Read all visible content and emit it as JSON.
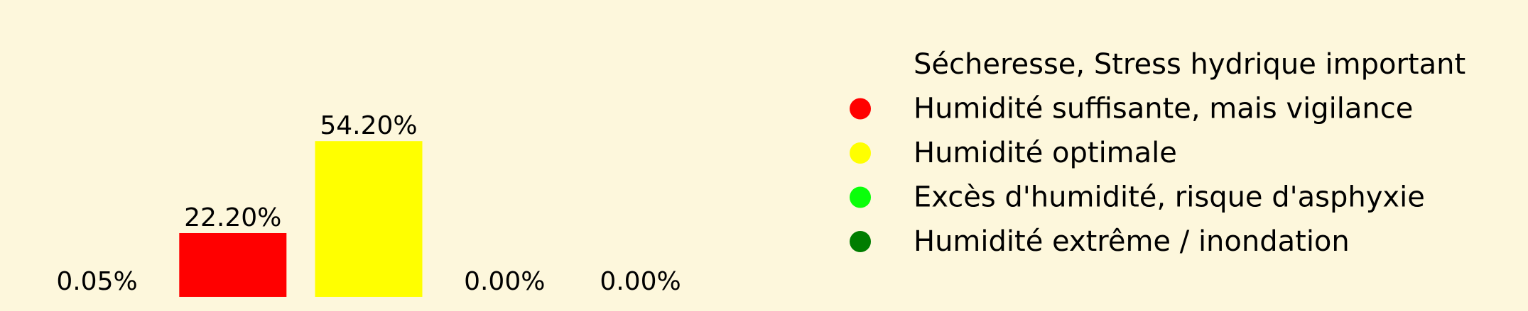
{
  "chart_data": {
    "type": "bar",
    "categories": [
      "Sécheresse, Stress hydrique important",
      "Humidité suffisante, mais vigilance",
      "Humidité optimale",
      "Excès d'humidité, risque d'asphyxie",
      "Humidité extrême / inondation"
    ],
    "values": [
      0.05,
      22.2,
      54.2,
      0.0,
      0.0
    ],
    "value_labels": [
      "0.05%",
      "22.20%",
      "54.20%",
      "0.00%",
      "0.00%"
    ],
    "colors": [
      "#fdf7dc",
      "#ff0000",
      "#ffff00",
      "#0aff0a",
      "#007d00"
    ],
    "ylim": [
      0,
      100
    ],
    "unit": "%",
    "grid": false,
    "legend": {
      "placement": "right",
      "entries": [
        {
          "label": "Sécheresse, Stress hydrique important",
          "color": "#fdf7dc"
        },
        {
          "label": "Humidité suffisante, mais vigilance",
          "color": "#ff0000"
        },
        {
          "label": "Humidité optimale",
          "color": "#ffff00"
        },
        {
          "label": "Excès d'humidité, risque d'asphyxie",
          "color": "#0aff0a"
        },
        {
          "label": "Humidité extrême / inondation",
          "color": "#007d00"
        }
      ]
    }
  }
}
